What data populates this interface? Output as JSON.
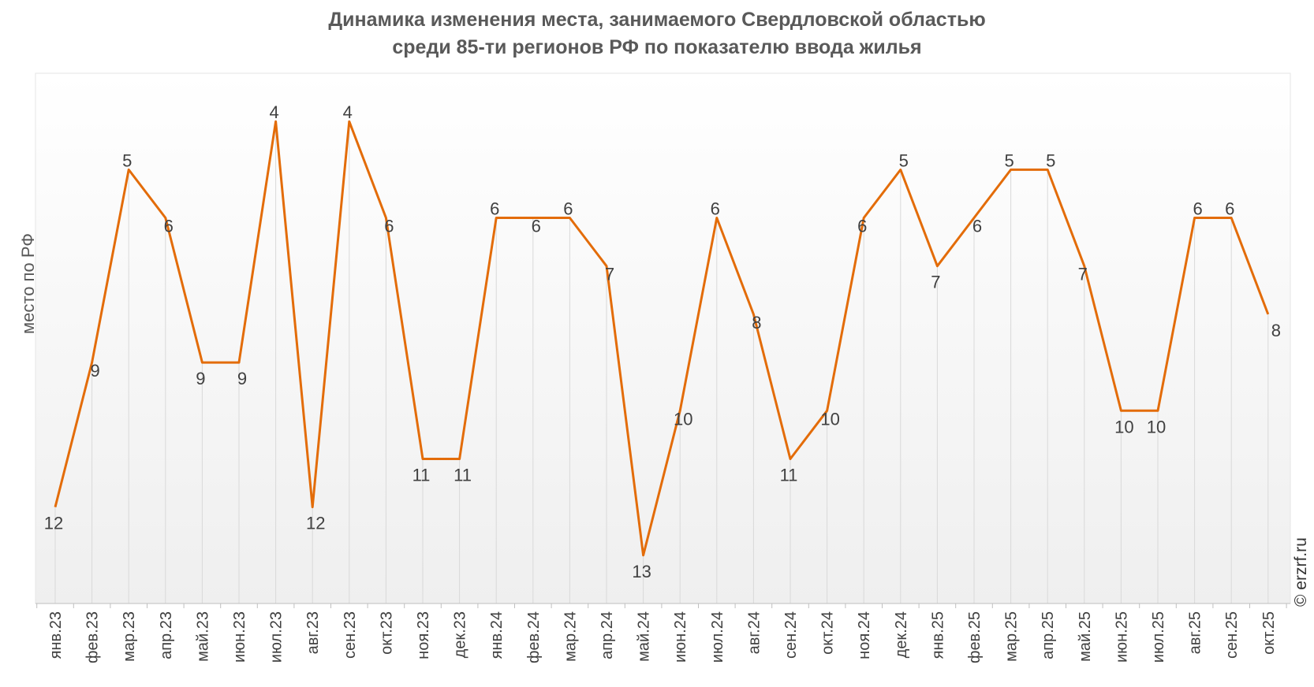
{
  "title_line1": "Динамика изменения места, занимаемого Свердловской областью",
  "title_line2": "среди 85-ти регионов РФ по показателю ввода жилья",
  "watermark": "© erzrf.ru",
  "chart_data": {
    "type": "line",
    "title": "Динамика изменения места, занимаемого Свердловской областью среди 85-ти регионов РФ по показателю ввода жилья",
    "xlabel": "",
    "ylabel": "место по РФ",
    "y_inverted": true,
    "ylim": [
      14,
      3
    ],
    "grid": false,
    "line_color": "#E36C09",
    "categories": [
      "янв.23",
      "фев.23",
      "мар.23",
      "апр.23",
      "май.23",
      "июн.23",
      "июл.23",
      "авг.23",
      "сен.23",
      "окт.23",
      "ноя.23",
      "дек.23",
      "янв.24",
      "фев.24",
      "мар.24",
      "апр.24",
      "май.24",
      "июн.24",
      "июл.24",
      "авг.24",
      "сен.24",
      "окт.24",
      "ноя.24",
      "дек.24",
      "янв.25",
      "фев.25",
      "мар.25",
      "апр.25",
      "май.25",
      "июн.25",
      "июл.25",
      "авг.25",
      "сен.25",
      "окт.25"
    ],
    "values": [
      12,
      9,
      5,
      6,
      9,
      9,
      4,
      12,
      4,
      6,
      11,
      11,
      6,
      6,
      6,
      7,
      13,
      10,
      6,
      8,
      11,
      10,
      6,
      5,
      7,
      6,
      5,
      5,
      7,
      10,
      10,
      6,
      6,
      8
    ]
  }
}
